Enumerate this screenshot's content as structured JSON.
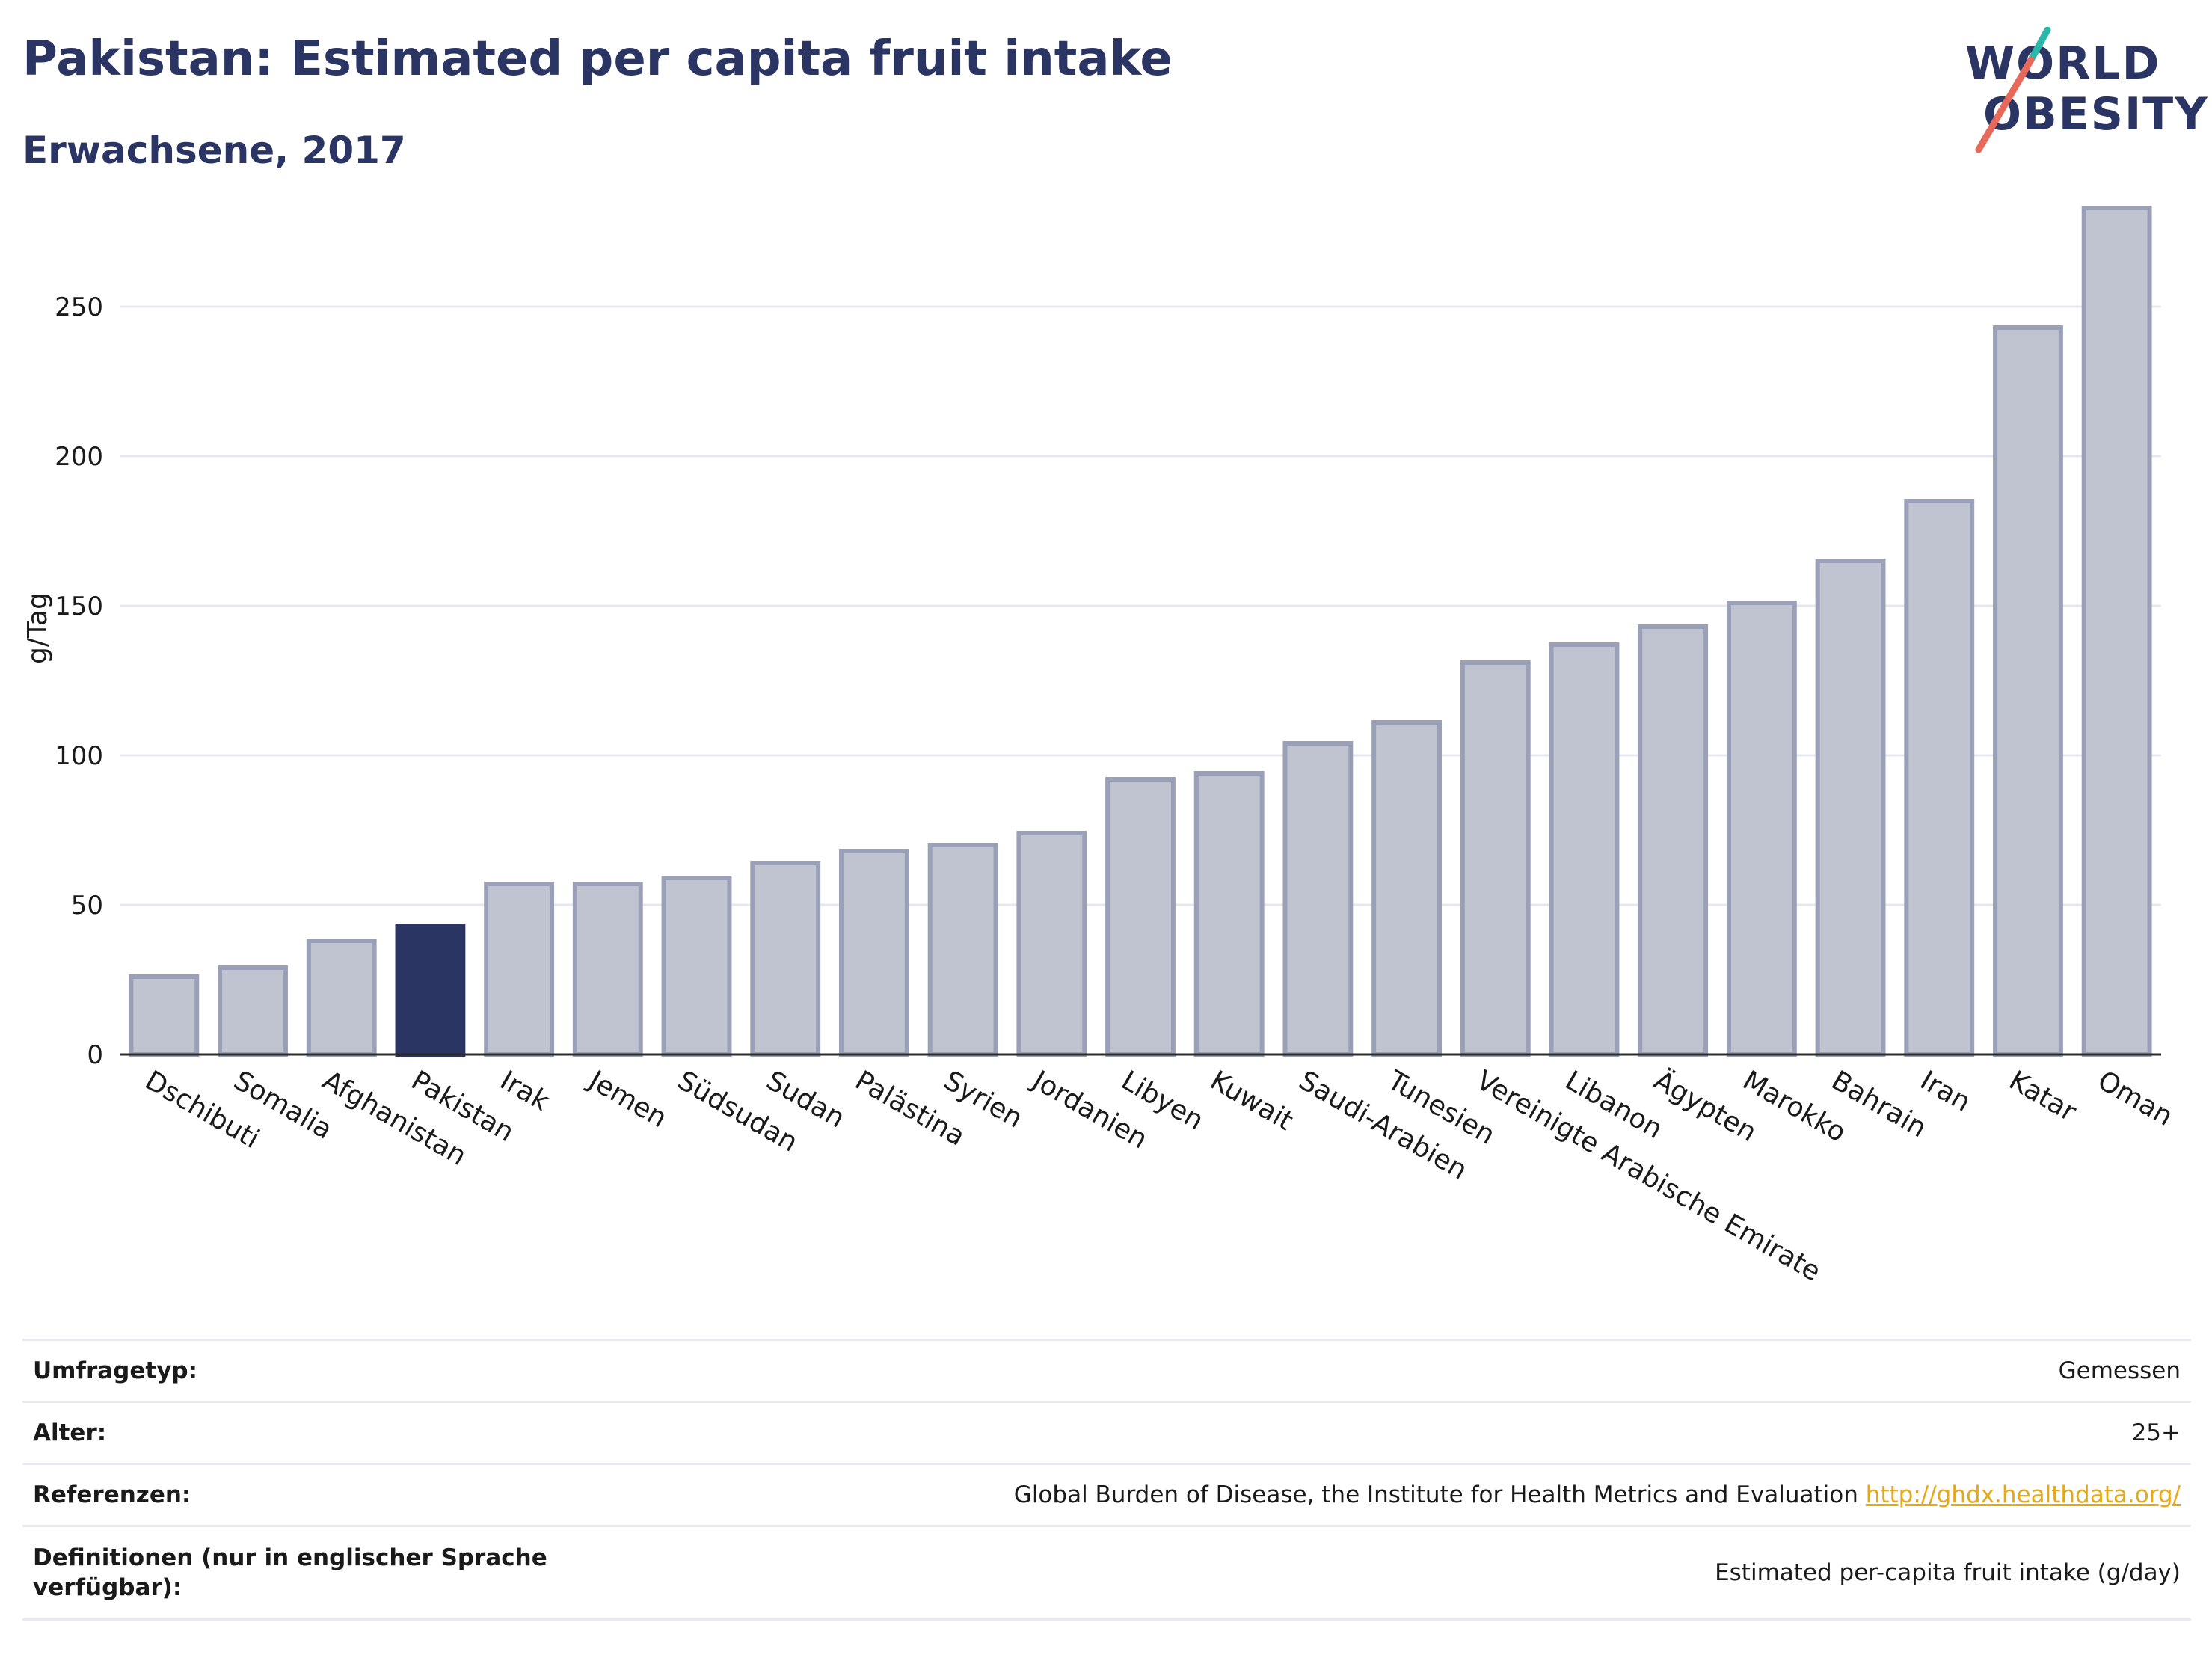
{
  "title": "Pakistan: Estimated per capita fruit intake",
  "subtitle": "Erwachsene, 2017",
  "logo": {
    "line1": "WORLD",
    "line2": "OBESITY"
  },
  "colors": {
    "highlight": "#2b3564",
    "bar": "#c0c4d0",
    "bar_edge": "#9aa0b8",
    "title": "#2b3564",
    "link": "#e6a817"
  },
  "chart_data": {
    "type": "bar",
    "ylabel": "g/Tag",
    "ylim": [
      0,
      290
    ],
    "yticks": [
      0,
      50,
      100,
      150,
      200,
      250
    ],
    "grid": true,
    "highlight": "Pakistan",
    "categories": [
      "Dschibuti",
      "Somalia",
      "Afghanistan",
      "Pakistan",
      "Irak",
      "Jemen",
      "Südsudan",
      "Sudan",
      "Palästina",
      "Syrien",
      "Jordanien",
      "Libyen",
      "Kuwait",
      "Saudi-Arabien",
      "Tunesien",
      "Vereinigte Arabische Emirate",
      "Libanon",
      "Ägypten",
      "Marokko",
      "Bahrain",
      "Iran",
      "Katar",
      "Oman"
    ],
    "values": [
      26,
      29,
      38,
      43,
      57,
      57,
      59,
      64,
      68,
      70,
      74,
      92,
      94,
      104,
      111,
      131,
      137,
      143,
      151,
      165,
      185,
      243,
      283
    ]
  },
  "info": [
    {
      "label": "Umfragetyp:",
      "value": "Gemessen"
    },
    {
      "label": "Alter:",
      "value": "25+"
    },
    {
      "label": "Referenzen:",
      "value": "Global Burden of Disease, the Institute for Health Metrics and Evaluation",
      "link": "http://ghdx.healthdata.org/"
    },
    {
      "label": "Definitionen (nur in englischer Sprache verfügbar):",
      "value": "Estimated per-capita fruit intake (g/day)"
    }
  ]
}
